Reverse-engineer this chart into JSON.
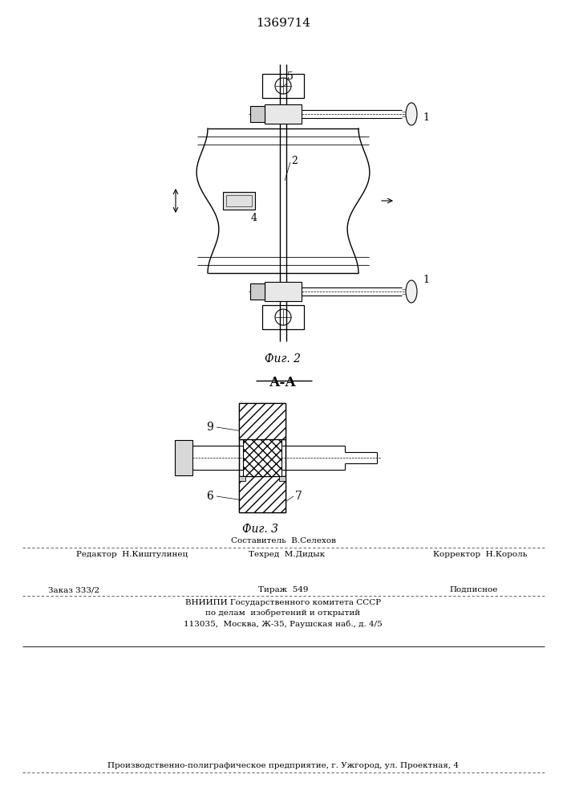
{
  "title": "1369714",
  "fig2_caption": "Фиг. 2",
  "fig3_caption": "Фиг. 3",
  "section_label": "А-А",
  "footer_editor": "Редактор  Н.Киштулинец",
  "footer_composer": "Составитель  В.Селехов",
  "footer_techred": "Техред  М.Дидык",
  "footer_corrector": "Корректор  Н.Король",
  "footer_order": "Заказ 333/2",
  "footer_tirazh": "Тираж  549",
  "footer_podpisnoe": "Подписное",
  "footer_vniipи": "ВНИИПИ Государственного комитета СССР",
  "footer_podelamam": "по делам  изобретений и открытий",
  "footer_address": "113035,  Москва, Ж-35, Раушская наб., д. 4/5",
  "footer_bottom": "Производственно-полиграфическое предприятие, г. Ужгород, ул. Проектная, 4",
  "bg_color": "#ffffff",
  "line_color": "#000000"
}
